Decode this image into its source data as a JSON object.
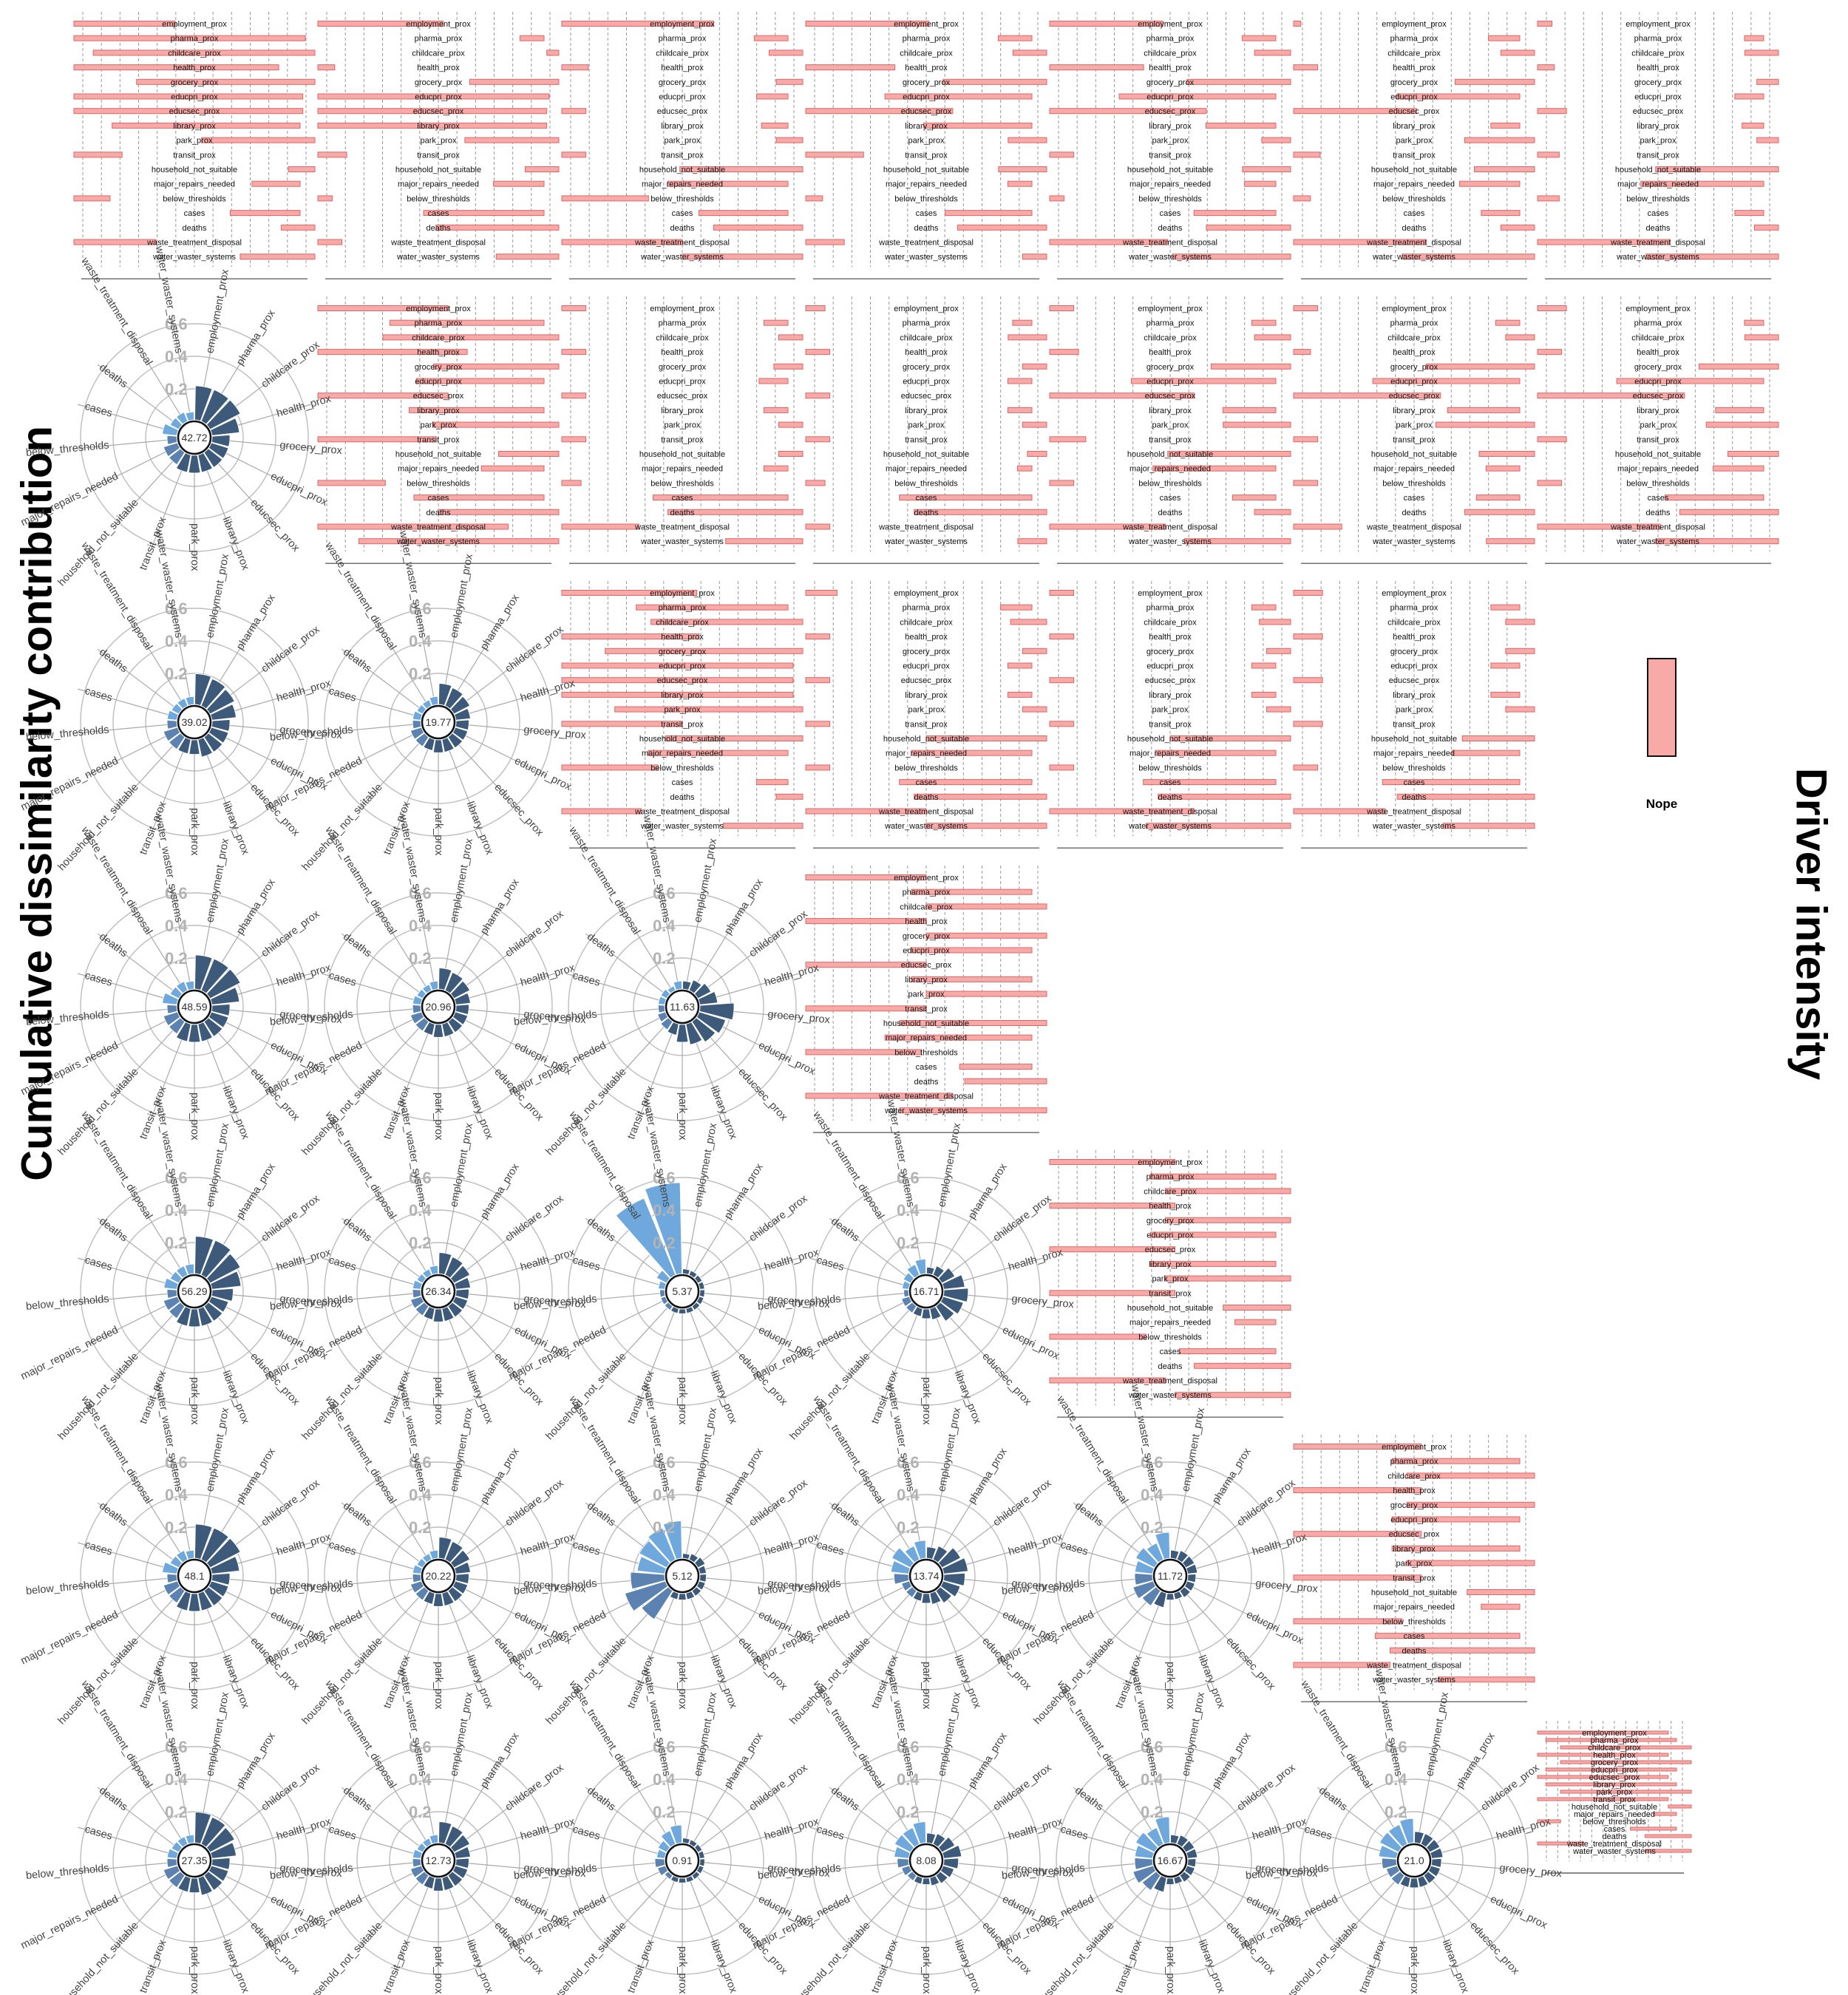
{
  "titles": {
    "y_axis": "Cumulative dissimilarity contribution",
    "right_axis": "Driver intensity"
  },
  "legend": {
    "label": "Nope",
    "swatch_color": "#f8aaa8"
  },
  "colors": {
    "bar_fill": "#f8aaa8",
    "bar_stroke": "#e06666",
    "polar_driver": "#3d5a7a",
    "polar_secondary": "#5b82b0",
    "polar_outcome": "#6fa8dc",
    "grid": "#999999",
    "radial_tick": "#b3b3b3"
  },
  "chart_data": {
    "type": "matrix",
    "variables": [
      "employment_prox",
      "pharma_prox",
      "childcare_prox",
      "health_prox",
      "grocery_prox",
      "educpri_prox",
      "educsec_prox",
      "library_prox",
      "park_prox",
      "transit_prox",
      "household_not_suitable",
      "major_repairs_needed",
      "below_thresholds",
      "cases",
      "deaths",
      "waste_treatment_disposal",
      "water_waster_systems"
    ],
    "radial_ticks": [
      {
        "label": "0.6",
        "value": 0.6
      },
      {
        "label": "0.4",
        "value": 0.4
      },
      {
        "label": "0.2",
        "value": 0.2
      }
    ],
    "bar_panels": [
      {
        "row": 0,
        "col": 0,
        "values": [
          0.42,
          0.96,
          0.92,
          0.85,
          0.74,
          0.95,
          0.95,
          0.78,
          0.47,
          0.2,
          0.11,
          0.2,
          0.15,
          0.29,
          0.14,
          0.34,
          0.31
        ]
      },
      {
        "row": 0,
        "col": 1,
        "values": [
          0.52,
          0.1,
          0.05,
          0.07,
          0.37,
          0.96,
          0.95,
          0.95,
          0.39,
          0.12,
          0.14,
          0.21,
          0.06,
          0.5,
          0.51,
          0.1,
          0.26
        ]
      },
      {
        "row": 0,
        "col": 2,
        "values": [
          0.63,
          0.14,
          0.14,
          0.11,
          0.11,
          0.13,
          0.1,
          0.11,
          0.11,
          0.1,
          0.51,
          0.5,
          0.36,
          0.37,
          0.37,
          0.5,
          0.5
        ]
      },
      {
        "row": 0,
        "col": 3,
        "values": [
          0.51,
          0.14,
          0.14,
          0.37,
          0.43,
          0.61,
          0.61,
          0.45,
          0.16,
          0.24,
          0.2,
          0.1,
          0.07,
          0.36,
          0.37,
          0.16,
          0.1
        ]
      },
      {
        "row": 0,
        "col": 4,
        "values": [
          0.47,
          0.14,
          0.15,
          0.39,
          0.43,
          0.65,
          0.65,
          0.29,
          0.12,
          0.1,
          0.2,
          0.13,
          0.06,
          0.34,
          0.35,
          0.49,
          0.49
        ]
      },
      {
        "row": 0,
        "col": 5,
        "values": [
          0.03,
          0.13,
          0.14,
          0.1,
          0.33,
          0.51,
          0.51,
          0.12,
          0.29,
          0.11,
          0.25,
          0.25,
          0.07,
          0.16,
          0.14,
          0.55,
          0.55
        ]
      },
      {
        "row": 0,
        "col": 6,
        "values": [
          0.06,
          0.08,
          0.14,
          0.07,
          0.09,
          0.12,
          0.12,
          0.09,
          0.09,
          0.09,
          0.51,
          0.51,
          0.09,
          0.12,
          0.1,
          0.55,
          0.55
        ]
      },
      {
        "row": 1,
        "col": 1,
        "values": [
          0.54,
          0.64,
          0.73,
          0.62,
          0.52,
          0.53,
          0.54,
          0.56,
          0.52,
          0.49,
          0.25,
          0.26,
          0.28,
          0.54,
          0.5,
          0.79,
          0.83
        ]
      },
      {
        "row": 1,
        "col": 2,
        "values": [
          0.1,
          0.1,
          0.1,
          0.1,
          0.12,
          0.12,
          0.1,
          0.1,
          0.1,
          0.1,
          0.1,
          0.1,
          0.08,
          0.56,
          0.56,
          0.32,
          0.32
        ]
      },
      {
        "row": 1,
        "col": 3,
        "values": [
          0.08,
          0.08,
          0.16,
          0.1,
          0.1,
          0.1,
          0.1,
          0.1,
          0.1,
          0.1,
          0.08,
          0.06,
          0.08,
          0.55,
          0.55,
          0.1,
          0.12
        ]
      },
      {
        "row": 1,
        "col": 4,
        "values": [
          0.1,
          0.1,
          0.15,
          0.12,
          0.33,
          0.6,
          0.6,
          0.22,
          0.28,
          0.15,
          0.51,
          0.51,
          0.1,
          0.18,
          0.15,
          0.48,
          0.44
        ]
      },
      {
        "row": 1,
        "col": 5,
        "values": [
          0.1,
          0.1,
          0.12,
          0.07,
          0.45,
          0.61,
          0.61,
          0.3,
          0.41,
          0.1,
          0.23,
          0.14,
          0.1,
          0.18,
          0.29,
          0.2,
          0.2
        ]
      },
      {
        "row": 1,
        "col": 6,
        "values": [
          0.12,
          0.08,
          0.14,
          0.1,
          0.33,
          0.61,
          0.61,
          0.2,
          0.3,
          0.12,
          0.21,
          0.21,
          0.1,
          0.41,
          0.41,
          0.51,
          0.51
        ]
      },
      {
        "row": 2,
        "col": 2,
        "values": [
          0.56,
          0.63,
          0.63,
          0.57,
          0.82,
          0.96,
          0.96,
          0.96,
          0.78,
          0.5,
          0.57,
          0.58,
          0.4,
          0.13,
          0.11,
          0.33,
          0.33
        ]
      },
      {
        "row": 2,
        "col": 3,
        "values": [
          0.13,
          0.13,
          0.15,
          0.1,
          0.1,
          0.1,
          0.1,
          0.1,
          0.1,
          0.1,
          0.5,
          0.5,
          0.1,
          0.55,
          0.55,
          0.5,
          0.5
        ]
      },
      {
        "row": 2,
        "col": 4,
        "values": [
          0.1,
          0.1,
          0.13,
          0.1,
          0.1,
          0.1,
          0.1,
          0.1,
          0.1,
          0.1,
          0.5,
          0.5,
          0.1,
          0.55,
          0.55,
          0.6,
          0.6
        ]
      },
      {
        "row": 2,
        "col": 5,
        "values": [
          0.12,
          0.12,
          0.12,
          0.12,
          0.12,
          0.12,
          0.12,
          0.12,
          0.12,
          0.12,
          0.3,
          0.28,
          0.1,
          0.57,
          0.57,
          0.38,
          0.38
        ]
      },
      {
        "row": 3,
        "col": 3,
        "values": [
          0.5,
          0.5,
          0.5,
          0.5,
          0.5,
          0.5,
          0.5,
          0.5,
          0.5,
          0.5,
          0.61,
          0.61,
          0.48,
          0.3,
          0.34,
          0.61,
          0.61
        ]
      },
      {
        "row": 4,
        "col": 4,
        "values": [
          0.52,
          0.52,
          0.52,
          0.52,
          0.52,
          0.52,
          0.52,
          0.52,
          0.52,
          0.52,
          0.28,
          0.17,
          0.4,
          0.4,
          0.4,
          0.48,
          0.48
        ]
      },
      {
        "row": 5,
        "col": 5,
        "values": [
          0.53,
          0.53,
          0.53,
          0.53,
          0.53,
          0.53,
          0.53,
          0.53,
          0.53,
          0.53,
          0.28,
          0.16,
          0.45,
          0.6,
          0.6,
          0.4,
          0.4
        ]
      },
      {
        "row": 6,
        "col": 6,
        "values": [
          0.85,
          0.85,
          0.85,
          0.85,
          0.85,
          0.85,
          0.85,
          0.85,
          0.85,
          0.85,
          0.15,
          0.15,
          0.15,
          0.3,
          0.3,
          0.3,
          0.3
        ]
      }
    ],
    "polar_panels": [
      {
        "row": 1,
        "col": 0,
        "center_value": "42.72",
        "values": [
          0.2,
          0.2,
          0.2,
          0.16,
          0.1,
          0.1,
          0.1,
          0.1,
          0.1,
          0.1,
          0.08,
          0.08,
          0.05,
          0.08,
          0.05,
          0.05,
          0.04
        ]
      },
      {
        "row": 2,
        "col": 0,
        "center_value": "39.02",
        "values": [
          0.18,
          0.17,
          0.16,
          0.14,
          0.1,
          0.1,
          0.1,
          0.1,
          0.08,
          0.08,
          0.08,
          0.08,
          0.05,
          0.05,
          0.04,
          0.04,
          0.04
        ]
      },
      {
        "row": 2,
        "col": 1,
        "center_value": "19.77",
        "values": [
          0.12,
          0.11,
          0.1,
          0.08,
          0.07,
          0.07,
          0.07,
          0.07,
          0.07,
          0.06,
          0.06,
          0.06,
          0.04,
          0.04,
          0.03,
          0.03,
          0.04
        ]
      },
      {
        "row": 3,
        "col": 0,
        "center_value": "48.59",
        "values": [
          0.2,
          0.2,
          0.2,
          0.16,
          0.1,
          0.1,
          0.1,
          0.1,
          0.1,
          0.1,
          0.08,
          0.08,
          0.05,
          0.08,
          0.05,
          0.05,
          0.04
        ]
      },
      {
        "row": 3,
        "col": 1,
        "center_value": "20.96",
        "values": [
          0.12,
          0.11,
          0.1,
          0.08,
          0.07,
          0.07,
          0.07,
          0.07,
          0.07,
          0.06,
          0.06,
          0.06,
          0.04,
          0.04,
          0.03,
          0.03,
          0.04
        ]
      },
      {
        "row": 3,
        "col": 2,
        "center_value": "11.63",
        "values": [
          0.04,
          0.06,
          0.08,
          0.1,
          0.2,
          0.16,
          0.14,
          0.12,
          0.1,
          0.06,
          0.05,
          0.04,
          0.03,
          0.03,
          0.03,
          0.02,
          0.04
        ]
      },
      {
        "row": 4,
        "col": 0,
        "center_value": "56.29",
        "values": [
          0.22,
          0.22,
          0.2,
          0.17,
          0.12,
          0.1,
          0.1,
          0.1,
          0.1,
          0.1,
          0.08,
          0.08,
          0.05,
          0.07,
          0.05,
          0.05,
          0.05
        ]
      },
      {
        "row": 4,
        "col": 1,
        "center_value": "26.34",
        "values": [
          0.12,
          0.11,
          0.1,
          0.08,
          0.07,
          0.07,
          0.07,
          0.07,
          0.07,
          0.06,
          0.06,
          0.06,
          0.04,
          0.04,
          0.03,
          0.03,
          0.04
        ]
      },
      {
        "row": 4,
        "col": 2,
        "center_value": "5.37",
        "values": [
          0.02,
          0.02,
          0.02,
          0.02,
          0.02,
          0.02,
          0.02,
          0.02,
          0.02,
          0.02,
          0.02,
          0.02,
          0.02,
          0.03,
          0.06,
          0.5,
          0.55
        ]
      },
      {
        "row": 4,
        "col": 3,
        "center_value": "16.71",
        "values": [
          0.03,
          0.05,
          0.08,
          0.12,
          0.14,
          0.12,
          0.1,
          0.06,
          0.05,
          0.04,
          0.04,
          0.04,
          0.02,
          0.03,
          0.04,
          0.06,
          0.08
        ]
      },
      {
        "row": 5,
        "col": 0,
        "center_value": "48.1",
        "values": [
          0.2,
          0.2,
          0.2,
          0.16,
          0.1,
          0.1,
          0.1,
          0.1,
          0.1,
          0.1,
          0.08,
          0.08,
          0.05,
          0.08,
          0.05,
          0.05,
          0.04
        ]
      },
      {
        "row": 5,
        "col": 1,
        "center_value": "20.22",
        "values": [
          0.12,
          0.11,
          0.1,
          0.08,
          0.07,
          0.07,
          0.07,
          0.07,
          0.07,
          0.06,
          0.06,
          0.06,
          0.04,
          0.04,
          0.03,
          0.03,
          0.04
        ]
      },
      {
        "row": 5,
        "col": 2,
        "center_value": "5.12",
        "values": [
          0.02,
          0.03,
          0.04,
          0.03,
          0.03,
          0.03,
          0.03,
          0.03,
          0.03,
          0.03,
          0.2,
          0.25,
          0.2,
          0.16,
          0.18,
          0.2,
          0.22
        ]
      },
      {
        "row": 5,
        "col": 3,
        "center_value": "13.74",
        "values": [
          0.06,
          0.08,
          0.12,
          0.14,
          0.12,
          0.1,
          0.08,
          0.06,
          0.05,
          0.04,
          0.04,
          0.04,
          0.08,
          0.1,
          0.12,
          0.08,
          0.1
        ]
      },
      {
        "row": 5,
        "col": 4,
        "center_value": "11.72",
        "values": [
          0.04,
          0.05,
          0.05,
          0.05,
          0.04,
          0.04,
          0.04,
          0.03,
          0.03,
          0.08,
          0.1,
          0.12,
          0.1,
          0.1,
          0.12,
          0.1,
          0.15
        ]
      },
      {
        "row": 6,
        "col": 0,
        "center_value": "27.35",
        "values": [
          0.18,
          0.17,
          0.16,
          0.14,
          0.1,
          0.1,
          0.1,
          0.1,
          0.08,
          0.08,
          0.08,
          0.08,
          0.05,
          0.05,
          0.04,
          0.04,
          0.04
        ]
      },
      {
        "row": 6,
        "col": 1,
        "center_value": "12.73",
        "values": [
          0.12,
          0.11,
          0.1,
          0.08,
          0.07,
          0.07,
          0.07,
          0.07,
          0.07,
          0.06,
          0.06,
          0.06,
          0.04,
          0.04,
          0.03,
          0.03,
          0.04
        ]
      },
      {
        "row": 6,
        "col": 2,
        "center_value": "0.91",
        "values": [
          0.02,
          0.02,
          0.02,
          0.02,
          0.02,
          0.02,
          0.02,
          0.02,
          0.02,
          0.02,
          0.02,
          0.04,
          0.05,
          0.04,
          0.05,
          0.08,
          0.1
        ]
      },
      {
        "row": 6,
        "col": 3,
        "center_value": "8.08",
        "values": [
          0.05,
          0.06,
          0.08,
          0.1,
          0.08,
          0.06,
          0.05,
          0.04,
          0.03,
          0.03,
          0.03,
          0.04,
          0.06,
          0.08,
          0.1,
          0.1,
          0.12
        ]
      },
      {
        "row": 6,
        "col": 4,
        "center_value": "16.67",
        "values": [
          0.04,
          0.05,
          0.05,
          0.05,
          0.04,
          0.04,
          0.04,
          0.03,
          0.03,
          0.08,
          0.1,
          0.12,
          0.1,
          0.1,
          0.12,
          0.1,
          0.15
        ]
      },
      {
        "row": 6,
        "col": 5,
        "center_value": "21.0",
        "values": [
          0.06,
          0.06,
          0.06,
          0.06,
          0.05,
          0.05,
          0.05,
          0.05,
          0.05,
          0.05,
          0.06,
          0.06,
          0.08,
          0.1,
          0.12,
          0.12,
          0.14
        ]
      }
    ]
  }
}
